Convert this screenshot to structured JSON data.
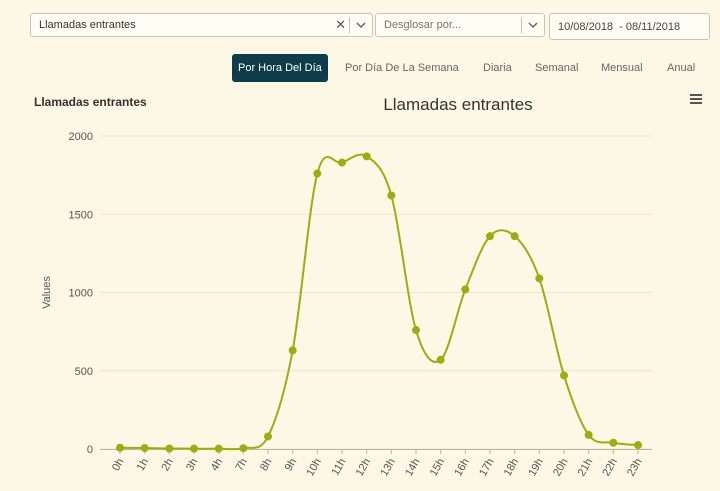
{
  "filters": {
    "metric_value": "Llamadas entrantes",
    "clear_glyph": "✕",
    "breakdown_placeholder": "Desglosar por...",
    "date_range": "10/08/2018  - 08/11/2018"
  },
  "tabs": [
    {
      "label": "Por Hora Del Día",
      "active": true
    },
    {
      "label": "Por Día De La Semana",
      "active": false
    },
    {
      "label": "Diaria",
      "active": false
    },
    {
      "label": "Semanal",
      "active": false
    },
    {
      "label": "Mensual",
      "active": false
    },
    {
      "label": "Anual",
      "active": false
    }
  ],
  "widget": {
    "title": "Llamadas entrantes",
    "menu_icon": "hamburger-menu-icon"
  },
  "colors": {
    "series": "#9aad12",
    "active_tab": "#0e3c4a",
    "background": "#fdf8e6"
  },
  "chart_data": {
    "type": "line",
    "title": "Llamadas entrantes",
    "ylabel": "Values",
    "xlabel": "",
    "categories": [
      "0h",
      "1h",
      "2h",
      "3h",
      "4h",
      "7h",
      "8h",
      "9h",
      "10h",
      "11h",
      "12h",
      "13h",
      "14h",
      "15h",
      "16h",
      "17h",
      "18h",
      "19h",
      "20h",
      "21h",
      "22h",
      "23h"
    ],
    "yticks": [
      0,
      500,
      1000,
      1500,
      2000
    ],
    "ylim": [
      0,
      2000
    ],
    "series": [
      {
        "values": [
          8,
          6,
          3,
          2,
          2,
          5,
          80,
          630,
          1760,
          1830,
          1870,
          1620,
          760,
          570,
          1020,
          1360,
          1360,
          1090,
          470,
          90,
          40,
          25
        ]
      }
    ],
    "grid": true,
    "legend": "none"
  }
}
